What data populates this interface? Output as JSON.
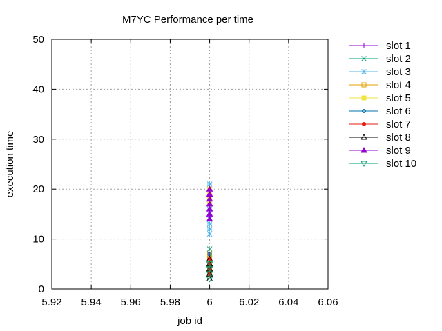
{
  "chart_data": {
    "type": "scatter",
    "title": "M7YC Performance per time",
    "xlabel": "job id",
    "ylabel": "execution time",
    "xlim": [
      5.92,
      6.06
    ],
    "ylim": [
      0,
      50
    ],
    "xticks": [
      "5.92",
      "5.94",
      "5.96",
      "5.98",
      "6",
      "6.02",
      "6.04",
      "6.06"
    ],
    "yticks": [
      "0",
      "10",
      "20",
      "30",
      "40",
      "50"
    ],
    "grid": true,
    "legend_position": "outside-right",
    "series": [
      {
        "name": "slot 1",
        "color": "#9400d3",
        "marker": "plus",
        "x": [
          6,
          6,
          6,
          6,
          6
        ],
        "y": [
          3,
          4,
          5,
          6,
          7
        ]
      },
      {
        "name": "slot 2",
        "color": "#009e73",
        "marker": "cross",
        "x": [
          6,
          6,
          6,
          6,
          6
        ],
        "y": [
          3,
          4,
          5,
          7,
          8
        ]
      },
      {
        "name": "slot 3",
        "color": "#56b4e9",
        "marker": "star",
        "x": [
          6,
          6,
          6,
          6,
          6,
          6,
          6,
          6,
          6,
          6,
          6
        ],
        "y": [
          11,
          12,
          13,
          14,
          15,
          16,
          17,
          18,
          19,
          20,
          21
        ]
      },
      {
        "name": "slot 4",
        "color": "#e69f00",
        "marker": "square-open",
        "x": [
          6,
          6,
          6,
          6,
          6
        ],
        "y": [
          3,
          4,
          5,
          6,
          7
        ]
      },
      {
        "name": "slot 5",
        "color": "#f0e442",
        "marker": "square-filled",
        "x": [
          6,
          6,
          6,
          6,
          6
        ],
        "y": [
          17,
          18,
          19,
          20,
          3
        ]
      },
      {
        "name": "slot 6",
        "color": "#0072b2",
        "marker": "circle-open",
        "x": [
          6,
          6,
          6,
          6,
          6
        ],
        "y": [
          3,
          4,
          5,
          6,
          7
        ]
      },
      {
        "name": "slot 7",
        "color": "#e51e10",
        "marker": "circle-filled",
        "x": [
          6,
          6,
          6,
          6
        ],
        "y": [
          3,
          4,
          5,
          6
        ]
      },
      {
        "name": "slot 8",
        "color": "#000000",
        "marker": "triangle-open",
        "x": [
          6,
          6,
          6,
          6,
          6
        ],
        "y": [
          2,
          3,
          4,
          5,
          6
        ]
      },
      {
        "name": "slot 9",
        "color": "#9400d3",
        "marker": "triangle-filled",
        "x": [
          6,
          6,
          6,
          6,
          6,
          6,
          6
        ],
        "y": [
          14,
          15,
          16,
          17,
          18,
          19,
          20
        ]
      },
      {
        "name": "slot 10",
        "color": "#009e73",
        "marker": "triangle-down-open",
        "x": [
          6,
          6,
          6,
          6
        ],
        "y": [
          2,
          3,
          4,
          5
        ]
      }
    ]
  }
}
